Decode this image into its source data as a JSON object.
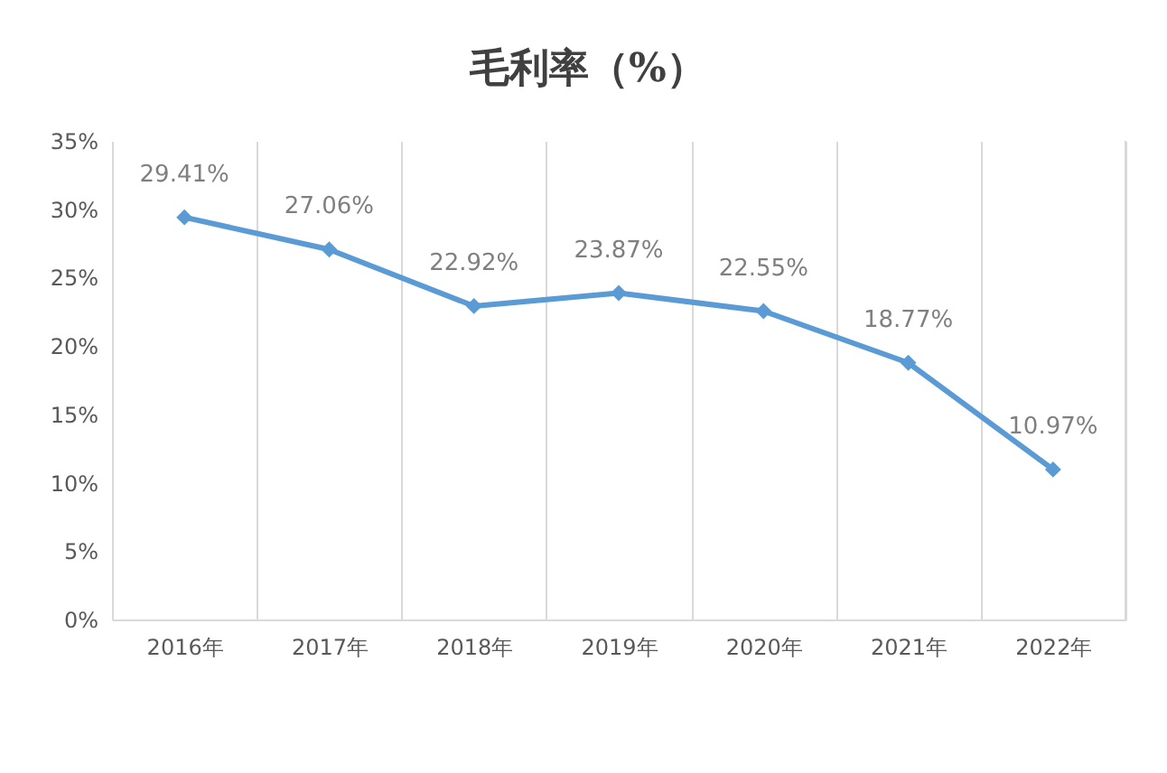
{
  "chart_data": {
    "type": "line",
    "title": "毛利率（%）",
    "categories": [
      "2016年",
      "2017年",
      "2018年",
      "2019年",
      "2020年",
      "2021年",
      "2022年"
    ],
    "series": [
      {
        "color": "#5b9bd5",
        "values": [
          29.41,
          27.06,
          22.92,
          23.87,
          22.55,
          18.77,
          10.97
        ],
        "value_labels": [
          "29.41%",
          "27.06%",
          "22.92%",
          "23.87%",
          "22.55%",
          "18.77%",
          "10.97%"
        ]
      }
    ],
    "ylim": [
      0,
      35
    ],
    "yticks": [
      {
        "value": 0,
        "label": "0%"
      },
      {
        "value": 5,
        "label": "5%"
      },
      {
        "value": 10,
        "label": "10%"
      },
      {
        "value": 15,
        "label": "15%"
      },
      {
        "value": 20,
        "label": "20%"
      },
      {
        "value": 25,
        "label": "25%"
      },
      {
        "value": 30,
        "label": "30%"
      },
      {
        "value": 35,
        "label": "35%"
      }
    ],
    "grid": "x",
    "marker": "diamond",
    "line_style": "solid"
  }
}
